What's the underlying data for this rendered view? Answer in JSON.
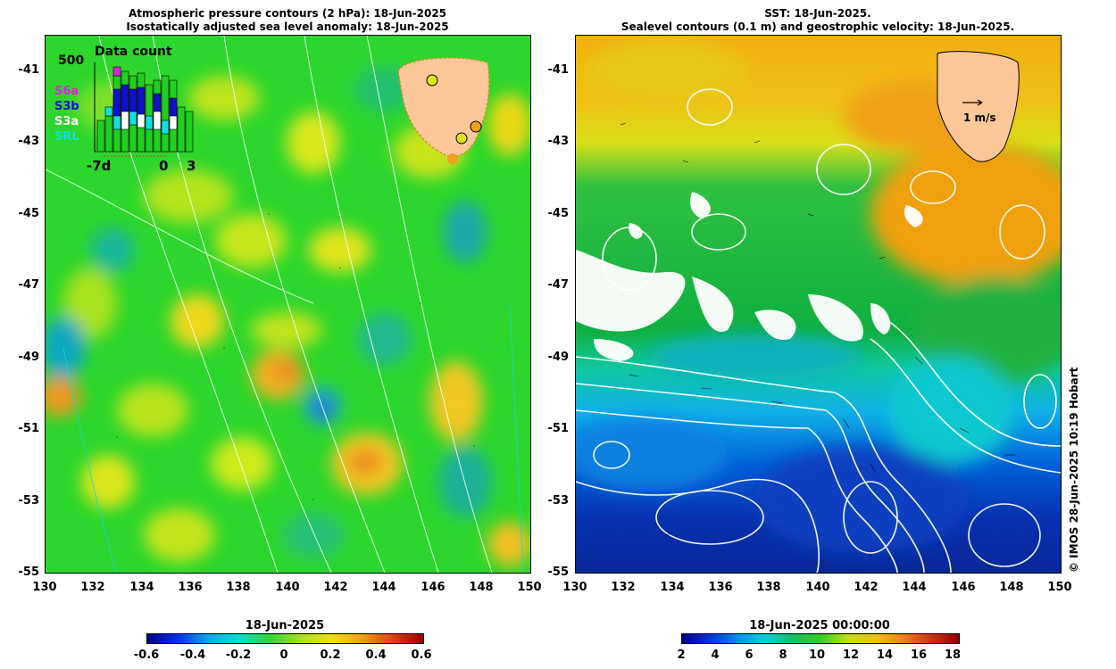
{
  "left": {
    "title_line1": "Atmospheric pressure contours (2 hPa): 18-Jun-2025",
    "title_line2": "Isostatically adjusted sea level anomaly: 18-Jun-2025",
    "inset": {
      "title": "Data count",
      "ymax": "500",
      "legend": [
        {
          "label": "S6a",
          "color": "#e020e0"
        },
        {
          "label": "S3b",
          "color": "#1010d0"
        },
        {
          "label": "S3a",
          "color": "#ffffff"
        },
        {
          "label": "SRL",
          "color": "#10e0e0"
        }
      ],
      "x_labels": [
        "-7d",
        "0",
        "3"
      ]
    },
    "colorbar": {
      "title": "18-Jun-2025",
      "ticks": [
        "-0.6",
        "-0.4",
        "-0.2",
        "0",
        "0.2",
        "0.4",
        "0.6"
      ]
    }
  },
  "right": {
    "title_line1": "SST: 18-Jun-2025.",
    "title_line2": "Sealevel contours (0.1 m) and geostrophic velocity: 18-Jun-2025.",
    "scale_label": "1 m/s",
    "colorbar": {
      "title": "18-Jun-2025 00:00:00",
      "ticks": [
        "2",
        "4",
        "6",
        "8",
        "10",
        "12",
        "14",
        "16",
        "18"
      ]
    }
  },
  "y_ticks": [
    "-41",
    "-43",
    "-45",
    "-47",
    "-49",
    "-51",
    "-53",
    "-55"
  ],
  "x_ticks": [
    "130",
    "132",
    "134",
    "136",
    "138",
    "140",
    "142",
    "144",
    "146",
    "148",
    "150"
  ],
  "credit": "© IMOS 28-Jun-2025 10:19 Hobart",
  "colors": {
    "land": "#fcc89a",
    "ssh_base": "#2ed82e",
    "sst_warm": "#f0b010",
    "sst_cold": "#0828b0"
  }
}
